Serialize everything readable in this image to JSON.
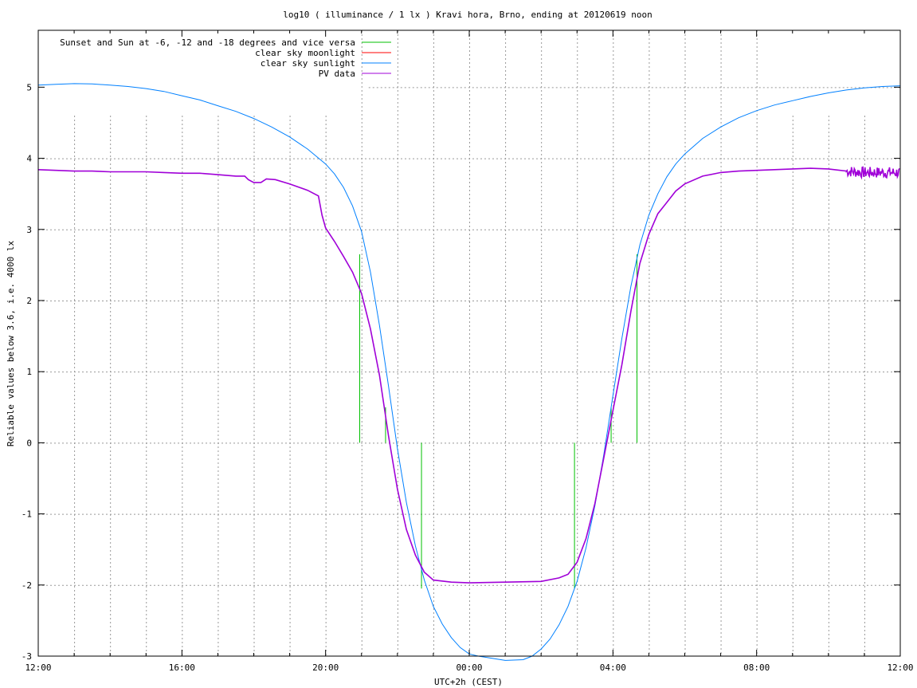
{
  "chart_data": {
    "type": "line",
    "title": "log10 ( illuminance / 1 lx ) Kravi hora, Brno, ending at 20120619 noon",
    "xlabel": "UTC+2h (CEST)",
    "ylabel": "Reliable values below 3.6, i.e. 4000 lx",
    "xlim": [
      12,
      36
    ],
    "ylim": [
      -3,
      5.8
    ],
    "xticks": [
      {
        "pos": 12,
        "label": "12:00"
      },
      {
        "pos": 16,
        "label": "16:00"
      },
      {
        "pos": 20,
        "label": "20:00"
      },
      {
        "pos": 24,
        "label": "00:00"
      },
      {
        "pos": 28,
        "label": "04:00"
      },
      {
        "pos": 32,
        "label": "08:00"
      },
      {
        "pos": 36,
        "label": "12:00"
      }
    ],
    "yticks": [
      {
        "pos": 5,
        "label": "5"
      },
      {
        "pos": 4,
        "label": "4"
      },
      {
        "pos": 3,
        "label": "3"
      },
      {
        "pos": 2,
        "label": "2"
      },
      {
        "pos": 1,
        "label": "1"
      },
      {
        "pos": 0,
        "label": "0"
      },
      {
        "pos": -1,
        "label": "-1"
      },
      {
        "pos": -2,
        "label": "-2"
      },
      {
        "pos": -3,
        "label": "-3"
      }
    ],
    "grid": true,
    "legend_position": "top-left",
    "series": [
      {
        "name": "Sunset and Sun at -6, -12 and -18 degrees and vice versa",
        "color": "#00c000",
        "kind": "impulses",
        "segments": [
          {
            "x": 20.95,
            "y0": 0,
            "y1": 2.65
          },
          {
            "x": 21.67,
            "y0": 0,
            "y1": 0.5
          },
          {
            "x": 22.67,
            "y0": 0,
            "y1": -2.05
          },
          {
            "x": 26.93,
            "y0": 0,
            "y1": -2.05
          },
          {
            "x": 27.95,
            "y0": 0,
            "y1": 0.5
          },
          {
            "x": 28.67,
            "y0": 0,
            "y1": 2.65
          }
        ]
      },
      {
        "name": "clear sky moonlight",
        "color": "#ff0000",
        "kind": "line",
        "points": []
      },
      {
        "name": "clear sky sunlight",
        "color": "#0080ff",
        "kind": "line",
        "points": [
          [
            12.0,
            5.03
          ],
          [
            12.5,
            5.04
          ],
          [
            13.0,
            5.05
          ],
          [
            13.5,
            5.045
          ],
          [
            14.0,
            5.03
          ],
          [
            14.5,
            5.01
          ],
          [
            15.0,
            4.98
          ],
          [
            15.5,
            4.94
          ],
          [
            16.0,
            4.88
          ],
          [
            16.5,
            4.82
          ],
          [
            17.0,
            4.74
          ],
          [
            17.5,
            4.66
          ],
          [
            18.0,
            4.56
          ],
          [
            18.5,
            4.44
          ],
          [
            19.0,
            4.3
          ],
          [
            19.5,
            4.13
          ],
          [
            20.0,
            3.92
          ],
          [
            20.25,
            3.78
          ],
          [
            20.5,
            3.59
          ],
          [
            20.75,
            3.33
          ],
          [
            21.0,
            2.97
          ],
          [
            21.25,
            2.4
          ],
          [
            21.5,
            1.65
          ],
          [
            21.75,
            0.8
          ],
          [
            22.0,
            -0.08
          ],
          [
            22.25,
            -0.84
          ],
          [
            22.5,
            -1.45
          ],
          [
            22.75,
            -1.93
          ],
          [
            23.0,
            -2.3
          ],
          [
            23.25,
            -2.55
          ],
          [
            23.5,
            -2.74
          ],
          [
            23.75,
            -2.88
          ],
          [
            24.0,
            -2.97
          ],
          [
            24.25,
            -3.0
          ],
          [
            24.5,
            -3.02
          ],
          [
            25.0,
            -3.06
          ],
          [
            25.5,
            -3.05
          ],
          [
            25.75,
            -3.0
          ],
          [
            26.0,
            -2.9
          ],
          [
            26.25,
            -2.76
          ],
          [
            26.5,
            -2.56
          ],
          [
            26.75,
            -2.3
          ],
          [
            27.0,
            -1.95
          ],
          [
            27.25,
            -1.48
          ],
          [
            27.5,
            -0.88
          ],
          [
            27.75,
            -0.15
          ],
          [
            28.0,
            0.66
          ],
          [
            28.25,
            1.47
          ],
          [
            28.5,
            2.2
          ],
          [
            28.75,
            2.78
          ],
          [
            29.0,
            3.2
          ],
          [
            29.25,
            3.5
          ],
          [
            29.5,
            3.74
          ],
          [
            29.75,
            3.92
          ],
          [
            30.0,
            4.06
          ],
          [
            30.5,
            4.28
          ],
          [
            31.0,
            4.44
          ],
          [
            31.5,
            4.57
          ],
          [
            32.0,
            4.67
          ],
          [
            32.5,
            4.75
          ],
          [
            33.0,
            4.81
          ],
          [
            33.5,
            4.87
          ],
          [
            34.0,
            4.92
          ],
          [
            34.5,
            4.96
          ],
          [
            35.0,
            4.99
          ],
          [
            35.5,
            5.01
          ],
          [
            36.0,
            5.02
          ]
        ]
      },
      {
        "name": "PV data",
        "color": "#a000d8",
        "kind": "line",
        "points": [
          [
            12.0,
            3.84
          ],
          [
            12.5,
            3.83
          ],
          [
            13.0,
            3.82
          ],
          [
            13.5,
            3.82
          ],
          [
            14.0,
            3.81
          ],
          [
            14.5,
            3.81
          ],
          [
            15.0,
            3.81
          ],
          [
            15.5,
            3.8
          ],
          [
            16.0,
            3.79
          ],
          [
            16.5,
            3.79
          ],
          [
            17.0,
            3.77
          ],
          [
            17.5,
            3.75
          ],
          [
            17.75,
            3.75
          ],
          [
            17.85,
            3.7
          ],
          [
            18.0,
            3.66
          ],
          [
            18.2,
            3.66
          ],
          [
            18.35,
            3.71
          ],
          [
            18.6,
            3.7
          ],
          [
            19.0,
            3.64
          ],
          [
            19.5,
            3.55
          ],
          [
            19.8,
            3.47
          ],
          [
            19.9,
            3.2
          ],
          [
            20.0,
            3.02
          ],
          [
            20.25,
            2.83
          ],
          [
            20.5,
            2.62
          ],
          [
            20.75,
            2.4
          ],
          [
            21.0,
            2.1
          ],
          [
            21.25,
            1.6
          ],
          [
            21.5,
            0.95
          ],
          [
            21.75,
            0.1
          ],
          [
            22.0,
            -0.65
          ],
          [
            22.25,
            -1.22
          ],
          [
            22.5,
            -1.58
          ],
          [
            22.75,
            -1.82
          ],
          [
            23.0,
            -1.93
          ],
          [
            23.5,
            -1.96
          ],
          [
            24.0,
            -1.97
          ],
          [
            25.0,
            -1.96
          ],
          [
            26.0,
            -1.95
          ],
          [
            26.5,
            -1.9
          ],
          [
            26.75,
            -1.85
          ],
          [
            27.0,
            -1.68
          ],
          [
            27.25,
            -1.35
          ],
          [
            27.5,
            -0.85
          ],
          [
            27.75,
            -0.2
          ],
          [
            28.0,
            0.45
          ],
          [
            28.25,
            1.1
          ],
          [
            28.5,
            1.85
          ],
          [
            28.75,
            2.52
          ],
          [
            29.0,
            2.93
          ],
          [
            29.25,
            3.22
          ],
          [
            29.5,
            3.38
          ],
          [
            29.75,
            3.54
          ],
          [
            30.0,
            3.64
          ],
          [
            30.5,
            3.75
          ],
          [
            31.0,
            3.8
          ],
          [
            31.5,
            3.82
          ],
          [
            32.0,
            3.83
          ],
          [
            32.5,
            3.84
          ],
          [
            33.0,
            3.85
          ],
          [
            33.5,
            3.86
          ],
          [
            34.0,
            3.85
          ],
          [
            34.5,
            3.82
          ],
          [
            35.0,
            3.8
          ],
          [
            35.5,
            3.8
          ],
          [
            36.0,
            3.8
          ]
        ],
        "noise_from_x": 34.5,
        "noise_amplitude": 0.08
      }
    ]
  }
}
